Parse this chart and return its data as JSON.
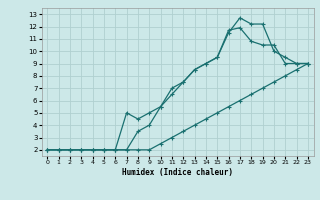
{
  "title": "",
  "xlabel": "Humidex (Indice chaleur)",
  "ylabel": "",
  "bg_color": "#cce8e8",
  "grid_color": "#b0d0d0",
  "line_color": "#1a7070",
  "xlim": [
    -0.5,
    23.5
  ],
  "ylim": [
    1.5,
    13.5
  ],
  "xticks": [
    0,
    1,
    2,
    3,
    4,
    5,
    6,
    7,
    8,
    9,
    10,
    11,
    12,
    13,
    14,
    15,
    16,
    17,
    18,
    19,
    20,
    21,
    22,
    23
  ],
  "yticks": [
    2,
    3,
    4,
    5,
    6,
    7,
    8,
    9,
    10,
    11,
    12,
    13
  ],
  "line1_x": [
    0,
    1,
    2,
    3,
    4,
    5,
    6,
    7,
    8,
    9,
    10,
    11,
    12,
    13,
    14,
    15,
    16,
    17,
    18,
    19,
    20,
    21,
    22,
    23
  ],
  "line1_y": [
    2,
    2,
    2,
    2,
    2,
    2,
    2,
    2,
    3.5,
    4,
    5.5,
    6.5,
    7.5,
    8.5,
    9,
    9.5,
    11.5,
    12.7,
    12.2,
    12.2,
    10,
    9.5,
    9,
    9
  ],
  "line2_x": [
    0,
    1,
    2,
    3,
    4,
    5,
    6,
    7,
    8,
    9,
    10,
    11,
    12,
    13,
    14,
    15,
    16,
    17,
    18,
    19,
    20,
    21,
    22,
    23
  ],
  "line2_y": [
    2,
    2,
    2,
    2,
    2,
    2,
    2,
    5,
    4.5,
    5,
    5.5,
    7,
    7.5,
    8.5,
    9,
    9.5,
    11.7,
    11.9,
    10.8,
    10.5,
    10.5,
    9,
    9,
    9
  ],
  "line3_x": [
    0,
    1,
    2,
    3,
    4,
    5,
    6,
    7,
    8,
    9,
    10,
    11,
    12,
    13,
    14,
    15,
    16,
    17,
    18,
    19,
    20,
    21,
    22,
    23
  ],
  "line3_y": [
    2,
    2,
    2,
    2,
    2,
    2,
    2,
    2,
    2,
    2,
    2.5,
    3,
    3.5,
    4,
    4.5,
    5,
    5.5,
    6,
    6.5,
    7,
    7.5,
    8,
    8.5,
    9
  ]
}
